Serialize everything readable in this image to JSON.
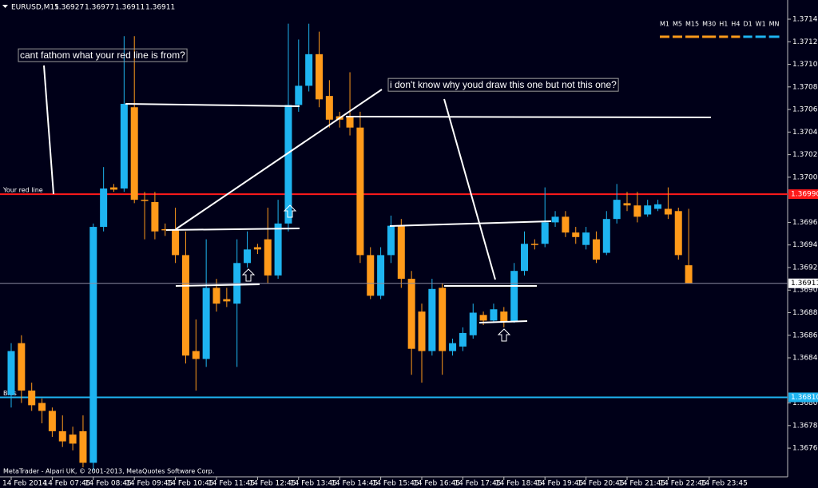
{
  "chart_data": {
    "type": "candlestick",
    "title": "EURUSD,M15",
    "up_color": "#1eb4f0",
    "down_color": "#ff9a1a",
    "categories": [
      "14 Feb 2014",
      null,
      null,
      null,
      "14 Feb 07:45",
      null,
      null,
      null,
      "14 Feb 08:45",
      null,
      null,
      null,
      "14 Feb 09:45",
      null,
      null,
      null,
      "14 Feb 10:45",
      null,
      null,
      null,
      "14 Feb 11:45",
      null,
      null,
      null,
      "14 Feb 12:45",
      null,
      null,
      null,
      "14 Feb 13:45",
      null,
      null,
      null,
      "14 Feb 14:45",
      null,
      null,
      null,
      "14 Feb 15:45",
      null,
      null,
      null,
      "14 Feb 16:45",
      null,
      null,
      null,
      "14 Feb 17:45",
      null,
      null,
      null,
      "14 Feb 18:45",
      null,
      null,
      null,
      "14 Feb 19:45",
      null,
      null,
      null,
      "14 Feb 20:45",
      null,
      null,
      null,
      "14 Feb 21:45",
      null,
      null,
      null,
      "14 Feb 22:45",
      null,
      null,
      null,
      "14 Feb 23:45",
      null
    ],
    "open": [
      1.36812,
      1.36858,
      1.36816,
      1.36805,
      1.36798,
      1.3678,
      1.36777,
      1.3678,
      1.36752,
      1.36961,
      1.36996,
      1.36995,
      1.37067,
      1.36985,
      1.36983,
      1.36959,
      1.36959,
      1.36936,
      1.36851,
      1.36844,
      1.36907,
      1.36897,
      1.36893,
      1.36929,
      1.36943,
      1.3695,
      1.36918,
      1.36964,
      1.37069,
      1.37086,
      1.37114,
      1.37077,
      1.37059,
      1.37059,
      1.37049,
      1.36936,
      1.369,
      1.36936,
      1.36962,
      1.36915,
      1.36886,
      1.36851,
      1.36907,
      1.36851,
      1.36855,
      1.36865,
      1.36883,
      1.36878,
      1.36886,
      1.36877,
      1.36922,
      1.36946,
      1.36946,
      1.36965,
      1.3697,
      1.36956,
      1.36945,
      1.3695,
      1.36938,
      1.36968,
      1.36982,
      1.3698,
      1.36972,
      1.36977,
      1.36977,
      1.36975,
      1.36927,
      null,
      null,
      null
    ],
    "high": [
      1.36858,
      1.36865,
      1.36823,
      1.36809,
      1.36801,
      1.36794,
      1.36784,
      1.36794,
      1.36964,
      1.37014,
      1.36999,
      1.3713,
      1.3713,
      1.36992,
      1.36992,
      1.36964,
      1.36978,
      1.36957,
      1.36879,
      1.3695,
      1.36915,
      1.36907,
      1.3695,
      1.36957,
      1.36946,
      1.36978,
      1.36985,
      1.37141,
      1.37127,
      1.37141,
      1.37134,
      1.37091,
      1.37063,
      1.37098,
      1.37063,
      1.36943,
      1.36943,
      1.36971,
      1.36968,
      1.36922,
      1.36893,
      1.36915,
      1.36911,
      1.36862,
      1.36872,
      1.36893,
      1.36886,
      1.36893,
      1.3689,
      1.36929,
      1.36957,
      1.3695,
      1.36996,
      1.36975,
      1.36975,
      1.36961,
      1.36961,
      1.36957,
      1.36975,
      1.36999,
      1.36992,
      1.36992,
      1.36985,
      1.36985,
      1.36996,
      1.36978,
      1.36977,
      null,
      null,
      null
    ],
    "low": [
      1.36801,
      1.36805,
      1.36798,
      1.36787,
      1.36775,
      1.36766,
      1.36763,
      1.36748,
      1.36745,
      1.36957,
      1.36992,
      1.36992,
      1.36982,
      1.3695,
      1.3695,
      1.36953,
      1.36929,
      1.3684,
      1.36816,
      1.36837,
      1.36886,
      1.3689,
      1.36837,
      1.36925,
      1.36937,
      1.36911,
      1.36915,
      1.36957,
      1.37063,
      1.37081,
      1.37067,
      1.37049,
      1.37049,
      1.37042,
      1.36929,
      1.36897,
      1.36897,
      1.36929,
      1.36907,
      1.3683,
      1.36823,
      1.36847,
      1.3683,
      1.36847,
      1.36851,
      1.36862,
      1.36874,
      1.36876,
      1.36872,
      1.36876,
      1.36918,
      1.36941,
      1.36943,
      1.36961,
      1.36952,
      1.36946,
      1.36941,
      1.36929,
      1.36936,
      1.36964,
      1.36975,
      1.36965,
      1.3697,
      1.36975,
      1.36968,
      1.36932,
      1.36911,
      null,
      null,
      null
    ],
    "close": [
      1.36851,
      1.36816,
      1.36803,
      1.36798,
      1.3678,
      1.36771,
      1.36769,
      1.36752,
      1.36961,
      1.36995,
      1.36994,
      1.3707,
      1.36985,
      1.36984,
      1.36957,
      1.36958,
      1.36936,
      1.36847,
      1.36844,
      1.36907,
      1.36893,
      1.36895,
      1.36929,
      1.36941,
      1.36941,
      1.36918,
      1.36964,
      1.37069,
      1.37086,
      1.37114,
      1.37074,
      1.37056,
      1.37056,
      1.37049,
      1.36936,
      1.369,
      1.36936,
      1.36962,
      1.36915,
      1.36853,
      1.36851,
      1.36906,
      1.36851,
      1.36858,
      1.36867,
      1.36885,
      1.36878,
      1.36888,
      1.36877,
      1.36922,
      1.36946,
      1.36945,
      1.36965,
      1.3697,
      1.36956,
      1.36952,
      1.36956,
      1.36932,
      1.36968,
      1.36985,
      1.3698,
      1.3697,
      1.3698,
      1.36981,
      1.36972,
      1.36936,
      1.36911,
      null,
      null,
      null
    ],
    "ylim": [
      1.36741,
      1.37162
    ],
    "yticks": [
      1.37145,
      1.37125,
      1.37105,
      1.37085,
      1.37065,
      1.37045,
      1.37025,
      1.37005,
      1.36965,
      1.36945,
      1.36925,
      1.36905,
      1.36885,
      1.36865,
      1.36845,
      1.36805,
      1.36785,
      1.36765
    ],
    "hlines": [
      {
        "name": "Your red line",
        "value": 1.3699,
        "label": "1.36990",
        "color": "#ff1a1a"
      },
      {
        "name": "Bias",
        "value": 1.3681,
        "label": "1.36810",
        "color": "#1eb4f0"
      }
    ],
    "annotations": [
      "cant fathom what your red line is from?",
      "i don't know why youd draw this one but not this one?"
    ],
    "timeframes": [
      {
        "label": "M1",
        "color": "#ff9a1a"
      },
      {
        "label": "M5",
        "color": "#ff9a1a"
      },
      {
        "label": "M15",
        "color": "#ff9a1a"
      },
      {
        "label": "M30",
        "color": "#ff9a1a"
      },
      {
        "label": "H1",
        "color": "#ff9a1a"
      },
      {
        "label": "H4",
        "color": "#ff9a1a"
      },
      {
        "label": "D1",
        "color": "#1eb4f0"
      },
      {
        "label": "W1",
        "color": "#1eb4f0"
      },
      {
        "label": "MN",
        "color": "#1eb4f0"
      }
    ],
    "footer": "MetaTrader - Alpari UK, © 2001-2013, MetaQuotes Software Corp."
  }
}
